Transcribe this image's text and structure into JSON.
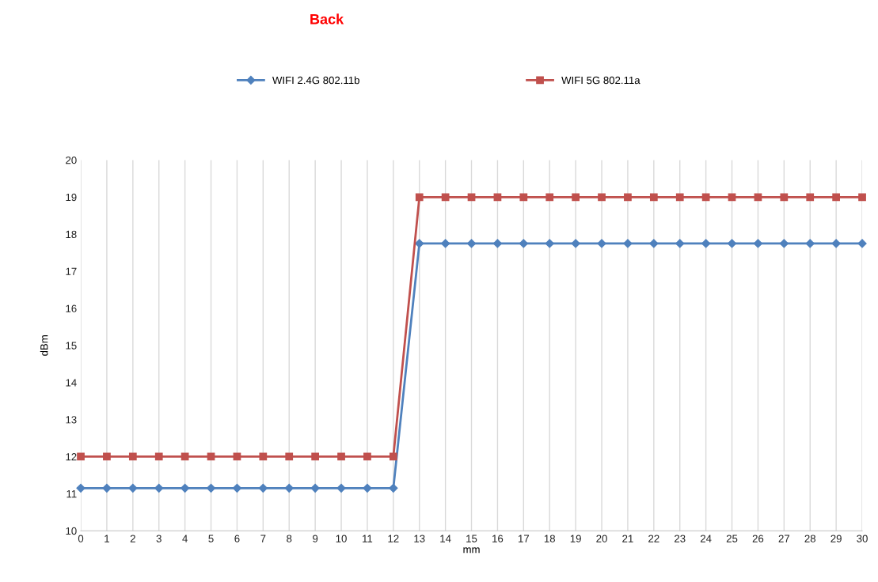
{
  "chart_data": {
    "type": "line",
    "title": "Back",
    "xlabel": "mm",
    "ylabel": "dBm",
    "categories": [
      "0",
      "1",
      "2",
      "3",
      "4",
      "5",
      "6",
      "7",
      "8",
      "9",
      "10",
      "11",
      "12",
      "13",
      "14",
      "15",
      "16",
      "17",
      "18",
      "19",
      "20",
      "21",
      "22",
      "23",
      "24",
      "25",
      "26",
      "27",
      "28",
      "29",
      "30"
    ],
    "series": [
      {
        "name": "WIFI 2.4G 802.11b",
        "color": "#4f81bd",
        "marker": "diamond",
        "values": [
          11.15,
          11.15,
          11.15,
          11.15,
          11.15,
          11.15,
          11.15,
          11.15,
          11.15,
          11.15,
          11.15,
          11.15,
          11.15,
          17.75,
          17.75,
          17.75,
          17.75,
          17.75,
          17.75,
          17.75,
          17.75,
          17.75,
          17.75,
          17.75,
          17.75,
          17.75,
          17.75,
          17.75,
          17.75,
          17.75,
          17.75
        ]
      },
      {
        "name": "WIFI 5G 802.11a",
        "color": "#c0504d",
        "marker": "square",
        "values": [
          12,
          12,
          12,
          12,
          12,
          12,
          12,
          12,
          12,
          12,
          12,
          12,
          12,
          19,
          19,
          19,
          19,
          19,
          19,
          19,
          19,
          19,
          19,
          19,
          19,
          19,
          19,
          19,
          19,
          19,
          19
        ]
      }
    ],
    "ylim": [
      10,
      20
    ],
    "yticks": [
      10,
      11,
      12,
      13,
      14,
      15,
      16,
      17,
      18,
      19,
      20
    ],
    "grid": "x",
    "legend": "top",
    "line_style": "solid"
  }
}
